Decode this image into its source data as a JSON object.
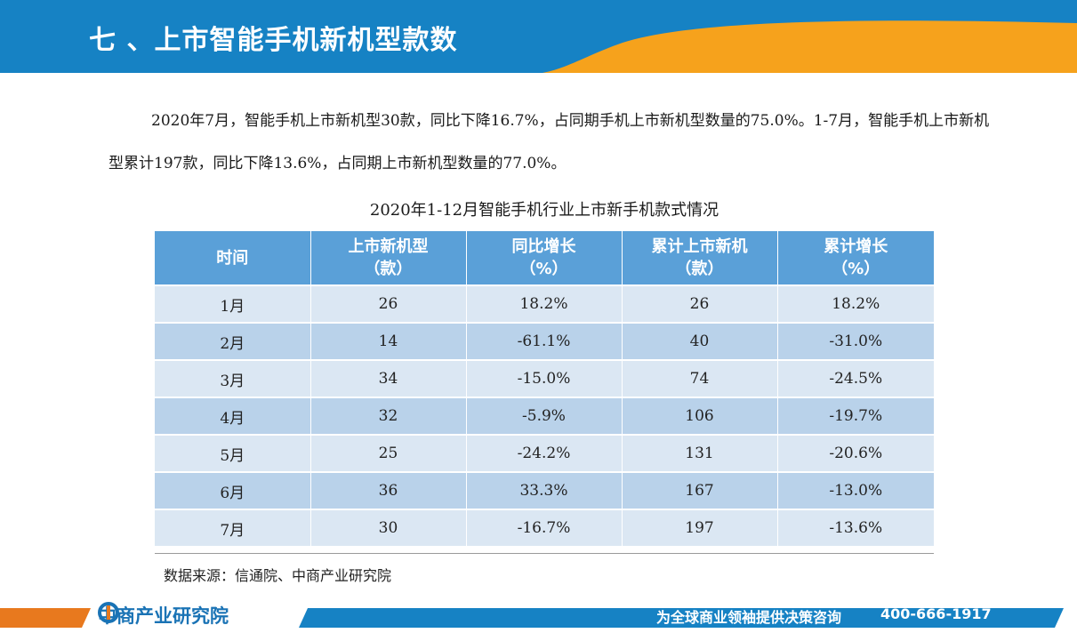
{
  "header": {
    "title": "七 、上市智能手机新机型款数"
  },
  "intro": "2020年7月，智能手机上市新机型30款，同比下降16.7%，占同期手机上市新机型数量的75.0%。1-7月，智能手机上市新机型累计197款，同比下降13.6%，占同期上市新机型数量的77.0%。",
  "table": {
    "title": "2020年1-12月智能手机行业上市新手机款式情况",
    "columns": [
      {
        "line1": "时间",
        "line2": ""
      },
      {
        "line1": "上市新机型",
        "line2": "（款）"
      },
      {
        "line1": "同比增长",
        "line2": "（%）"
      },
      {
        "line1": "累计上市新机",
        "line2": "（款）"
      },
      {
        "line1": "累计增长",
        "line2": "（%）"
      }
    ],
    "rows": [
      [
        "1月",
        "26",
        "18.2%",
        "26",
        "18.2%"
      ],
      [
        "2月",
        "14",
        "-61.1%",
        "40",
        "-31.0%"
      ],
      [
        "3月",
        "34",
        "-15.0%",
        "74",
        "-24.5%"
      ],
      [
        "4月",
        "32",
        "-5.9%",
        "106",
        "-19.7%"
      ],
      [
        "5月",
        "25",
        "-24.2%",
        "131",
        "-20.6%"
      ],
      [
        "6月",
        "36",
        "33.3%",
        "167",
        "-13.0%"
      ],
      [
        "7月",
        "30",
        "-16.7%",
        "197",
        "-13.6%"
      ]
    ]
  },
  "source": "数据来源：信通院、中商产业研究院",
  "footer": {
    "logo_text": "中商产业研究院",
    "slogan": "为全球商业领袖提供决策咨询",
    "phone": "400-666-1917"
  },
  "colors": {
    "header_blue": "#1682c4",
    "header_orange": "#f6a21c",
    "table_header": "#5aa0d8",
    "row_light": "#dbe7f3",
    "row_dark": "#b9d2ea",
    "footer_blue": "#1682c4",
    "footer_orange": "#e8791e"
  }
}
